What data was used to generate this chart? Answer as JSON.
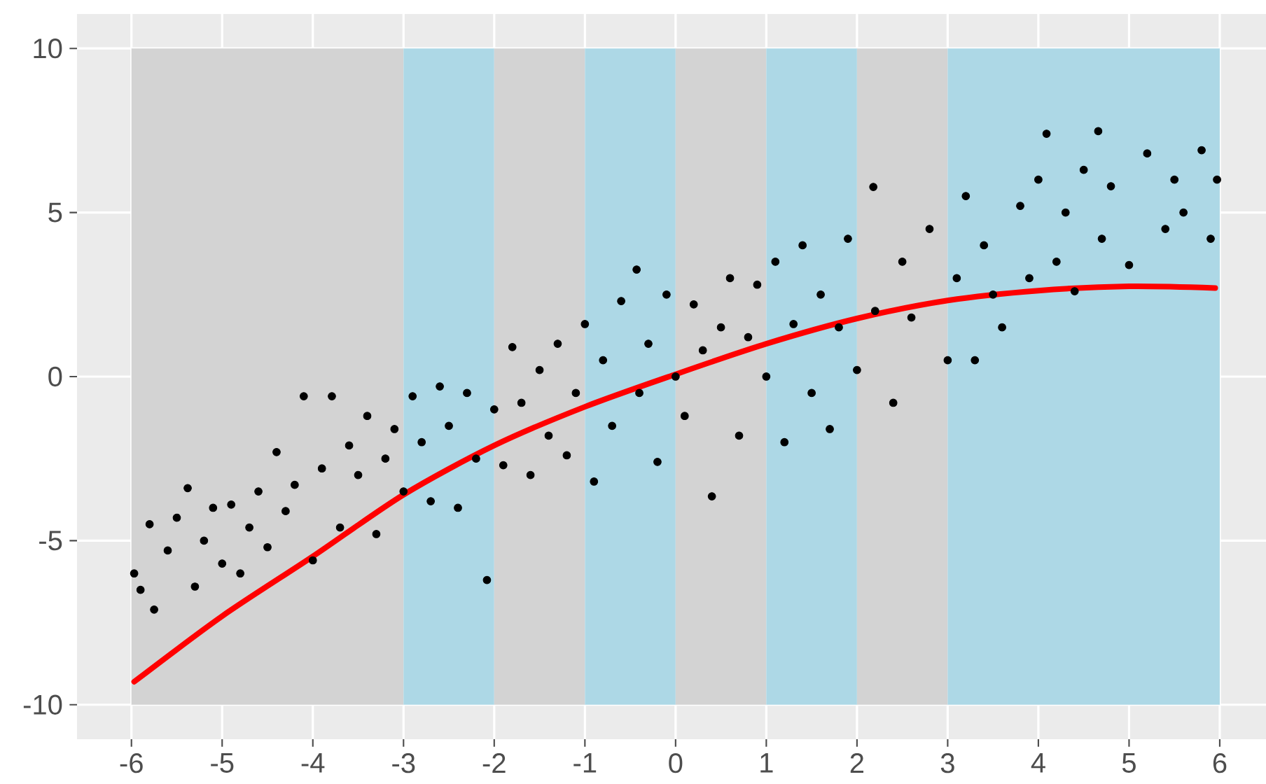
{
  "chart_data": {
    "type": "scatter",
    "xlim": [
      -6.6,
      6.51
    ],
    "ylim": [
      -11.05,
      11.05
    ],
    "xticks": [
      -6,
      -5,
      -4,
      -3,
      -2,
      -1,
      0,
      1,
      2,
      3,
      4,
      5,
      6
    ],
    "yticks": [
      -10,
      -5,
      0,
      5,
      10
    ],
    "grid": true,
    "bands": [
      {
        "axis": "x",
        "from": -6,
        "to": -3,
        "color": "#d3d3d3"
      },
      {
        "axis": "x",
        "from": -3,
        "to": -2,
        "color": "#add8e6"
      },
      {
        "axis": "x",
        "from": -2,
        "to": -1,
        "color": "#d3d3d3"
      },
      {
        "axis": "x",
        "from": -1,
        "to": 0,
        "color": "#add8e6"
      },
      {
        "axis": "x",
        "from": 0,
        "to": 1,
        "color": "#d3d3d3"
      },
      {
        "axis": "x",
        "from": 1,
        "to": 2,
        "color": "#add8e6"
      },
      {
        "axis": "x",
        "from": 2,
        "to": 3,
        "color": "#d3d3d3"
      },
      {
        "axis": "x",
        "from": 3,
        "to": 6,
        "color": "#add8e6"
      }
    ],
    "series": [
      {
        "type": "scatter",
        "color": "#000000",
        "marker": "circle",
        "x": [
          -5.97,
          -5.9,
          -5.8,
          -5.75,
          -5.6,
          -5.5,
          -5.38,
          -5.3,
          -5.2,
          -5.1,
          -5.0,
          -4.9,
          -4.8,
          -4.7,
          -4.6,
          -4.5,
          -4.4,
          -4.3,
          -4.2,
          -4.1,
          -4.0,
          -3.9,
          -3.79,
          -3.7,
          -3.6,
          -3.5,
          -3.4,
          -3.3,
          -3.2,
          -3.1,
          -3.0,
          -2.9,
          -2.8,
          -2.7,
          -2.6,
          -2.5,
          -2.4,
          -2.3,
          -2.2,
          -2.08,
          -2.0,
          -1.9,
          -1.8,
          -1.7,
          -1.6,
          -1.5,
          -1.4,
          -1.3,
          -1.2,
          -1.1,
          -1.0,
          -0.9,
          -0.8,
          -0.7,
          -0.6,
          -0.43,
          -0.4,
          -0.3,
          -0.2,
          -0.1,
          0.0,
          0.1,
          0.2,
          0.3,
          0.4,
          0.5,
          0.6,
          0.7,
          0.8,
          0.9,
          1.0,
          1.1,
          1.2,
          1.3,
          1.4,
          1.5,
          1.6,
          1.7,
          1.8,
          1.9,
          2.0,
          2.18,
          2.2,
          2.4,
          2.5,
          2.6,
          2.8,
          3.0,
          3.1,
          3.2,
          3.3,
          3.4,
          3.5,
          3.6,
          3.8,
          3.9,
          4.0,
          4.09,
          4.2,
          4.3,
          4.4,
          4.5,
          4.66,
          4.7,
          4.8,
          5.0,
          5.2,
          5.4,
          5.5,
          5.6,
          5.8,
          5.9,
          5.97
        ],
        "values": [
          -6.0,
          -6.5,
          -4.5,
          -7.1,
          -5.3,
          -4.3,
          -3.4,
          -6.4,
          -5.0,
          -4.0,
          -5.7,
          -3.9,
          -6.0,
          -4.6,
          -3.5,
          -5.2,
          -2.3,
          -4.1,
          -3.3,
          -0.6,
          -5.6,
          -2.8,
          -0.6,
          -4.6,
          -2.1,
          -3.0,
          -1.2,
          -4.8,
          -2.5,
          -1.6,
          -3.5,
          -0.6,
          -2.0,
          -3.8,
          -0.3,
          -1.5,
          -4.0,
          -0.5,
          -2.5,
          -6.2,
          -1.0,
          -2.7,
          0.9,
          -0.8,
          -3.0,
          0.2,
          -1.8,
          1.0,
          -2.4,
          -0.5,
          1.6,
          -3.2,
          0.5,
          -1.5,
          2.3,
          3.26,
          -0.5,
          1.0,
          -2.6,
          2.5,
          0.0,
          -1.2,
          2.2,
          0.8,
          -3.65,
          1.5,
          3.0,
          -1.8,
          1.2,
          2.8,
          0.0,
          3.5,
          -2.0,
          1.6,
          4.0,
          -0.5,
          2.5,
          -1.6,
          1.5,
          4.2,
          0.2,
          5.78,
          2.0,
          -0.8,
          3.5,
          1.8,
          4.5,
          0.5,
          3.0,
          5.5,
          0.5,
          4.0,
          2.5,
          1.5,
          5.2,
          3.0,
          6.0,
          7.4,
          3.5,
          5.0,
          2.6,
          6.3,
          7.48,
          4.2,
          5.8,
          3.4,
          6.8,
          4.5,
          6.0,
          5.0,
          6.9,
          4.2,
          6.0
        ]
      },
      {
        "type": "line",
        "color": "#ff0000",
        "marker": "none",
        "x": [
          -5.97,
          -5.0,
          -4.0,
          -3.0,
          -2.0,
          -1.0,
          0.0,
          1.0,
          2.0,
          3.0,
          4.0,
          5.0,
          5.95
        ],
        "values": [
          -9.3,
          -7.3,
          -5.48,
          -3.6,
          -2.1,
          -0.92,
          0.07,
          1.0,
          1.77,
          2.32,
          2.62,
          2.75,
          2.7
        ]
      }
    ]
  }
}
